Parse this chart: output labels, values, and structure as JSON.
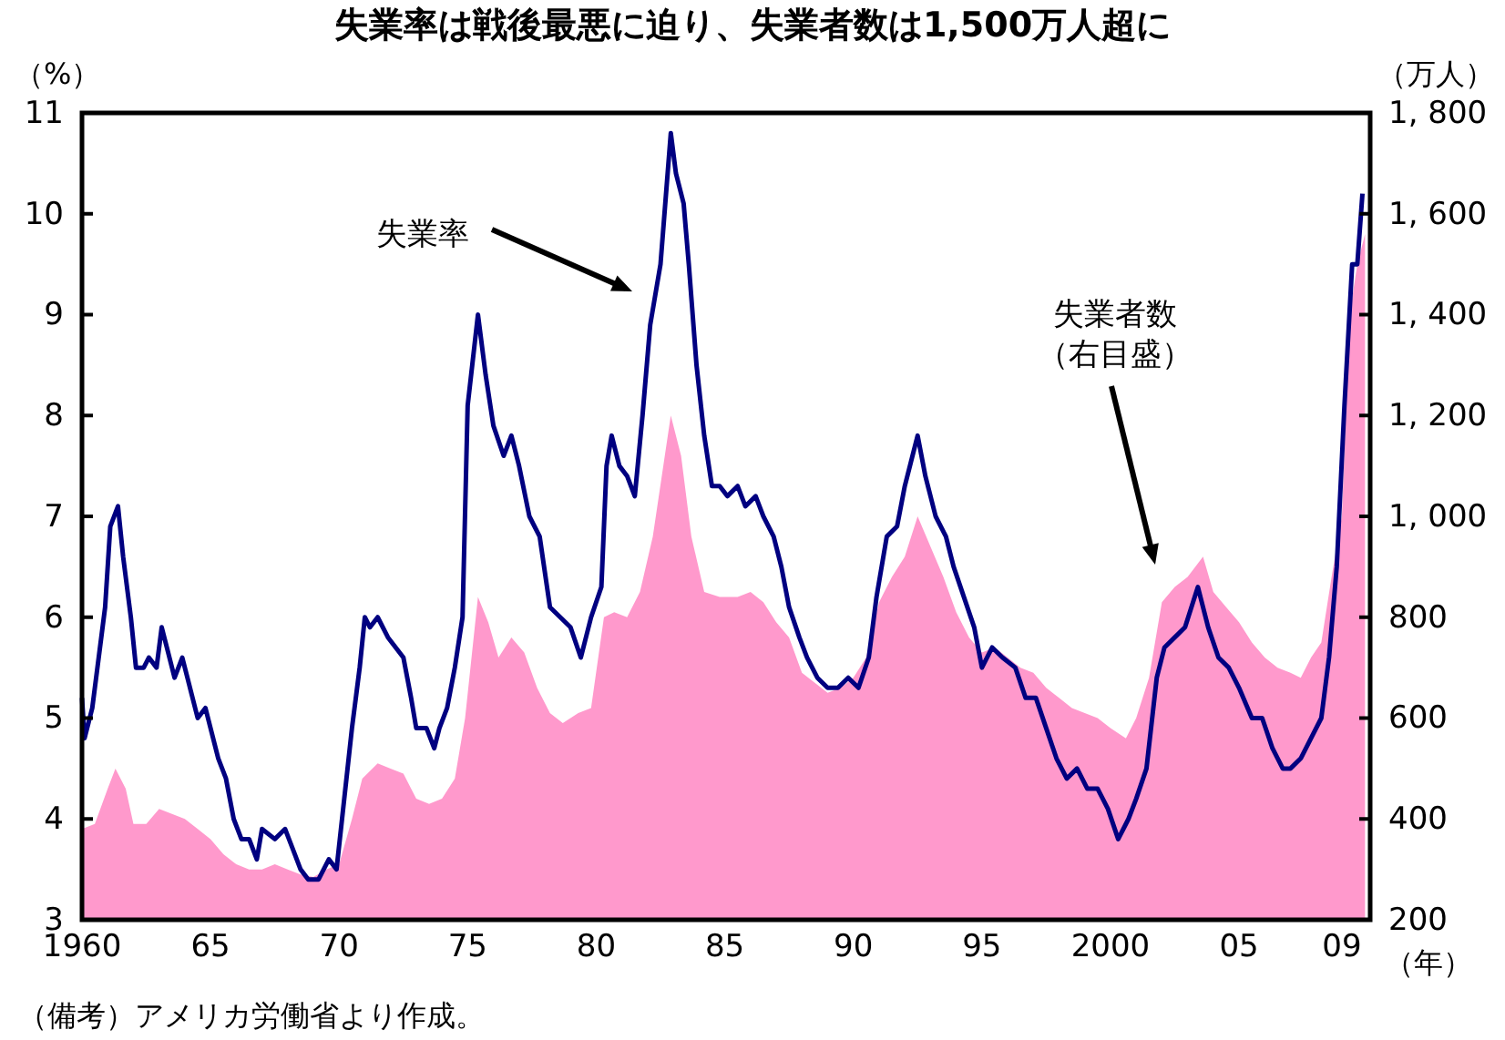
{
  "chart_data": {
    "type": "line",
    "title": "失業率は戦後最悪に迫り、失業者数は1,500万人超に",
    "xlabel": "（年）",
    "ylabel": "（%）",
    "y2label": "（万人）",
    "xlim": [
      1960,
      2010.1
    ],
    "xticks": [
      {
        "value": 1960,
        "label": "1960"
      },
      {
        "value": 1965,
        "label": "65"
      },
      {
        "value": 1970,
        "label": "70"
      },
      {
        "value": 1975,
        "label": "75"
      },
      {
        "value": 1980,
        "label": "80"
      },
      {
        "value": 1985,
        "label": "85"
      },
      {
        "value": 1990,
        "label": "90"
      },
      {
        "value": 1995,
        "label": "95"
      },
      {
        "value": 2000,
        "label": "2000"
      },
      {
        "value": 2005,
        "label": "05"
      },
      {
        "value": 2009,
        "label": "09"
      }
    ],
    "ylim": [
      3,
      11
    ],
    "yticks": [
      3,
      4,
      5,
      6,
      7,
      8,
      9,
      10,
      11
    ],
    "y2lim": [
      200,
      1800
    ],
    "y2ticks": [
      200,
      400,
      600,
      800,
      {
        "value": 1000,
        "label": "1, 000"
      },
      {
        "value": 1200,
        "label": "1, 200"
      },
      {
        "value": 1400,
        "label": "1, 400"
      },
      {
        "value": 1600,
        "label": "1, 600"
      },
      {
        "value": 1800,
        "label": "1, 800"
      }
    ],
    "grid": false,
    "series": [
      {
        "type": "area",
        "axis": "y2",
        "color": "#ff99cc",
        "x": [
          1960.0,
          1960.5,
          1961.0,
          1961.3,
          1961.7,
          1962.0,
          1962.5,
          1963.0,
          1963.5,
          1964.0,
          1964.5,
          1965.0,
          1965.5,
          1966.0,
          1966.5,
          1967.0,
          1967.5,
          1968.0,
          1968.5,
          1969.0,
          1969.5,
          1970.0,
          1970.5,
          1970.9,
          1971.5,
          1972.0,
          1972.5,
          1973.0,
          1973.5,
          1974.0,
          1974.5,
          1974.9,
          1975.4,
          1975.8,
          1976.2,
          1976.7,
          1977.2,
          1977.7,
          1978.2,
          1978.7,
          1979.3,
          1979.8,
          1980.3,
          1980.7,
          1981.2,
          1981.7,
          1982.2,
          1982.9,
          1983.3,
          1983.7,
          1984.2,
          1984.8,
          1985.5,
          1986.0,
          1986.5,
          1987.0,
          1987.5,
          1988.0,
          1988.5,
          1989.0,
          1989.5,
          1990.0,
          1990.5,
          1991.0,
          1991.5,
          1992.0,
          1992.5,
          1993.0,
          1993.5,
          1994.0,
          1994.5,
          1995.0,
          1995.5,
          1996.0,
          1996.5,
          1997.0,
          1997.5,
          1998.0,
          1998.5,
          1999.0,
          1999.5,
          2000.0,
          2000.6,
          2001.0,
          2001.5,
          2002.0,
          2002.5,
          2003.0,
          2003.6,
          2004.0,
          2004.5,
          2005.0,
          2005.5,
          2006.0,
          2006.5,
          2007.0,
          2007.4,
          2007.8,
          2008.2,
          2008.6,
          2009.0,
          2009.3,
          2009.6,
          2009.9
        ],
        "values": [
          380,
          390,
          460,
          500,
          460,
          390,
          390,
          420,
          410,
          400,
          380,
          360,
          330,
          310,
          300,
          300,
          310,
          300,
          290,
          285,
          300,
          310,
          400,
          480,
          510,
          500,
          490,
          440,
          430,
          440,
          480,
          600,
          840,
          790,
          720,
          760,
          730,
          660,
          610,
          590,
          610,
          620,
          800,
          810,
          800,
          850,
          960,
          1200,
          1120,
          960,
          850,
          840,
          840,
          850,
          830,
          790,
          760,
          690,
          670,
          650,
          660,
          680,
          720,
          830,
          880,
          920,
          1000,
          940,
          880,
          810,
          760,
          730,
          740,
          720,
          700,
          690,
          660,
          640,
          620,
          610,
          600,
          580,
          560,
          600,
          680,
          830,
          860,
          880,
          920,
          850,
          820,
          790,
          750,
          720,
          700,
          690,
          680,
          720,
          750,
          880,
          1000,
          1400,
          1500,
          1560
        ]
      },
      {
        "axis": "y",
        "color": "#000080",
        "x": [
          1960.0,
          1960.1,
          1960.4,
          1960.6,
          1960.9,
          1961.1,
          1961.4,
          1961.6,
          1961.9,
          1962.1,
          1962.4,
          1962.6,
          1962.9,
          1963.1,
          1963.3,
          1963.6,
          1963.9,
          1964.1,
          1964.5,
          1964.8,
          1965.0,
          1965.3,
          1965.6,
          1965.9,
          1966.2,
          1966.5,
          1966.8,
          1967.0,
          1967.5,
          1967.9,
          1968.2,
          1968.5,
          1968.8,
          1969.2,
          1969.6,
          1969.9,
          1970.2,
          1970.5,
          1970.8,
          1971.0,
          1971.2,
          1971.5,
          1971.9,
          1972.2,
          1972.5,
          1972.8,
          1973.0,
          1973.4,
          1973.7,
          1973.9,
          1974.2,
          1974.5,
          1974.8,
          1975.0,
          1975.4,
          1975.7,
          1976.0,
          1976.4,
          1976.7,
          1977.0,
          1977.4,
          1977.8,
          1978.2,
          1978.6,
          1979.0,
          1979.4,
          1979.8,
          1980.2,
          1980.4,
          1980.6,
          1980.9,
          1981.2,
          1981.5,
          1981.8,
          1982.1,
          1982.5,
          1982.9,
          1983.1,
          1983.4,
          1983.6,
          1983.9,
          1984.2,
          1984.5,
          1984.8,
          1985.1,
          1985.5,
          1985.8,
          1986.2,
          1986.5,
          1986.9,
          1987.2,
          1987.5,
          1987.9,
          1988.2,
          1988.6,
          1989.0,
          1989.4,
          1989.8,
          1990.2,
          1990.6,
          1990.9,
          1991.3,
          1991.7,
          1992.0,
          1992.5,
          1992.8,
          1993.2,
          1993.6,
          1993.9,
          1994.3,
          1994.7,
          1995.0,
          1995.4,
          1995.8,
          1996.3,
          1996.7,
          1997.1,
          1997.5,
          1997.9,
          1998.3,
          1998.7,
          1999.1,
          1999.5,
          1999.9,
          2000.3,
          2000.7,
          2001.0,
          2001.4,
          2001.8,
          2002.1,
          2002.5,
          2002.9,
          2003.4,
          2003.8,
          2004.2,
          2004.6,
          2005.0,
          2005.5,
          2005.9,
          2006.3,
          2006.7,
          2007.0,
          2007.4,
          2007.8,
          2008.2,
          2008.5,
          2008.8,
          2009.1,
          2009.4,
          2009.6,
          2009.8
        ],
        "values": [
          5.2,
          4.8,
          5.1,
          5.5,
          6.1,
          6.9,
          7.1,
          6.6,
          6.0,
          5.5,
          5.5,
          5.6,
          5.5,
          5.9,
          5.7,
          5.4,
          5.6,
          5.4,
          5.0,
          5.1,
          4.9,
          4.6,
          4.4,
          4.0,
          3.8,
          3.8,
          3.6,
          3.9,
          3.8,
          3.9,
          3.7,
          3.5,
          3.4,
          3.4,
          3.6,
          3.5,
          4.2,
          4.9,
          5.5,
          6.0,
          5.9,
          6.0,
          5.8,
          5.7,
          5.6,
          5.2,
          4.9,
          4.9,
          4.7,
          4.9,
          5.1,
          5.5,
          6.0,
          8.1,
          9.0,
          8.4,
          7.9,
          7.6,
          7.8,
          7.5,
          7.0,
          6.8,
          6.1,
          6.0,
          5.9,
          5.6,
          6.0,
          6.3,
          7.5,
          7.8,
          7.5,
          7.4,
          7.2,
          8.0,
          8.9,
          9.5,
          10.8,
          10.4,
          10.1,
          9.5,
          8.5,
          7.8,
          7.3,
          7.3,
          7.2,
          7.3,
          7.1,
          7.2,
          7.0,
          6.8,
          6.5,
          6.1,
          5.8,
          5.6,
          5.4,
          5.3,
          5.3,
          5.4,
          5.3,
          5.6,
          6.2,
          6.8,
          6.9,
          7.3,
          7.8,
          7.4,
          7.0,
          6.8,
          6.5,
          6.2,
          5.9,
          5.5,
          5.7,
          5.6,
          5.5,
          5.2,
          5.2,
          4.9,
          4.6,
          4.4,
          4.5,
          4.3,
          4.3,
          4.1,
          3.8,
          4.0,
          4.2,
          4.5,
          5.4,
          5.7,
          5.8,
          5.9,
          6.3,
          5.9,
          5.6,
          5.5,
          5.3,
          5.0,
          5.0,
          4.7,
          4.5,
          4.5,
          4.6,
          4.8,
          5.0,
          5.6,
          6.5,
          8.1,
          9.5,
          9.5,
          10.2
        ]
      }
    ],
    "annotations": [
      "失業率",
      "失業者数",
      "（右目盛）",
      "（備考）アメリカ労働省より作成。"
    ]
  }
}
